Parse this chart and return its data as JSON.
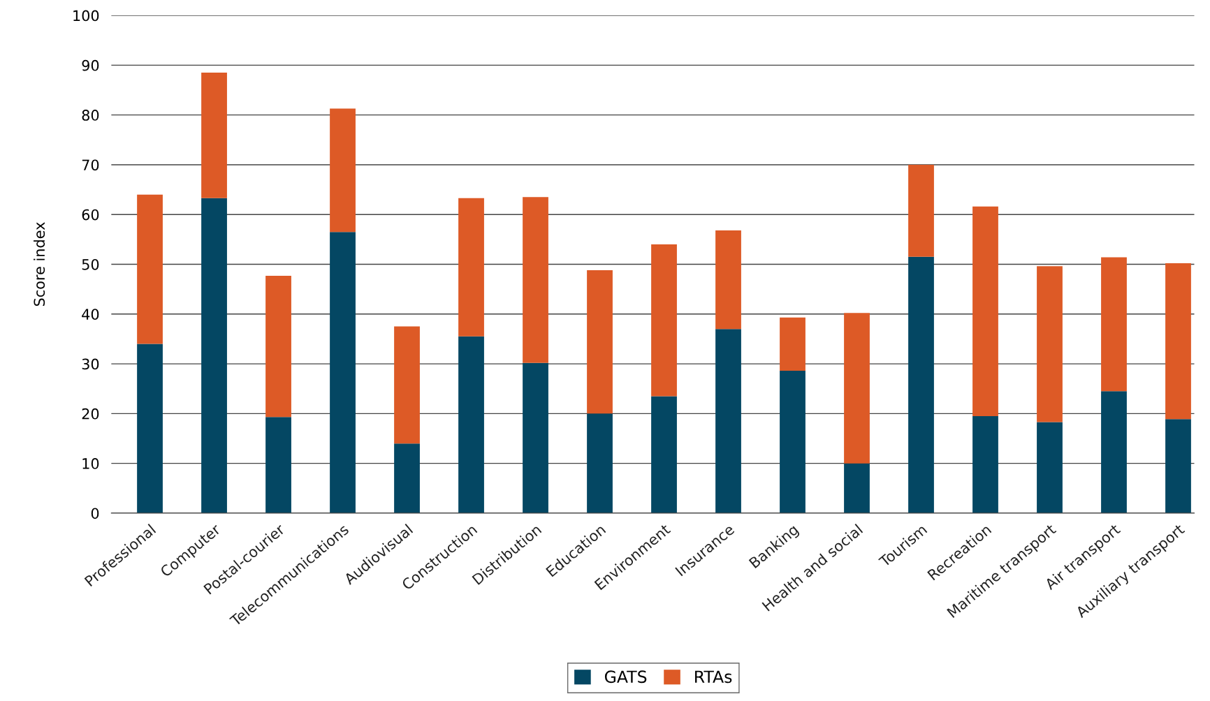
{
  "chart_data": {
    "type": "bar",
    "stacked": true,
    "ylabel": "Score index",
    "categories": [
      "Professional",
      "Computer",
      "Postal-courier",
      "Telecommunications",
      "Audiovisual",
      "Construction",
      "Distribution",
      "Education",
      "Environment",
      "Insurance",
      "Banking",
      "Health and social",
      "Tourism",
      "Recreation",
      "Maritime transport",
      "Air transport",
      "Auxiliary transport"
    ],
    "series": [
      {
        "name": "GATS",
        "color": "#044763",
        "values": [
          34,
          63.3,
          19.3,
          56.5,
          14,
          35.5,
          30.2,
          20,
          23.5,
          37,
          28.6,
          10,
          51.5,
          19.5,
          18.3,
          24.5,
          18.9
        ]
      },
      {
        "name": "RTAs",
        "color": "#dd5a26",
        "values": [
          30,
          25.2,
          28.4,
          24.8,
          23.5,
          27.8,
          33.3,
          28.8,
          30.5,
          19.8,
          10.7,
          30.2,
          18.5,
          42.1,
          31.3,
          26.9,
          31.3
        ]
      }
    ],
    "ylim": [
      0,
      100
    ],
    "yticks": [
      0,
      10,
      20,
      30,
      40,
      50,
      60,
      70,
      80,
      90,
      100
    ],
    "grid": "y",
    "legend": "bottom"
  }
}
